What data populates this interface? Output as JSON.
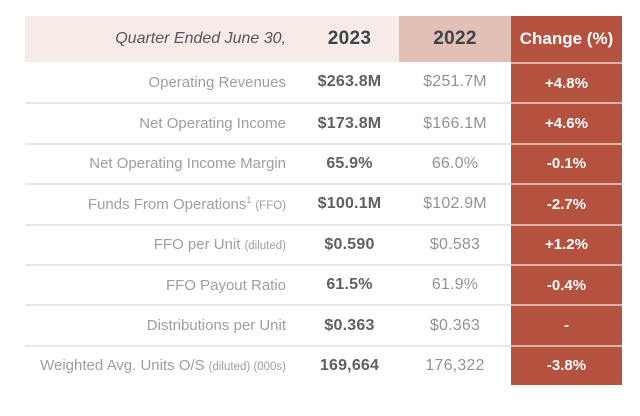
{
  "chart_data": {
    "type": "table",
    "columns": [
      "Quarter Ended June 30,",
      "2023",
      "2022",
      "Change (%)"
    ],
    "rows": [
      {
        "label": "Operating Revenues",
        "sup": "",
        "suffix": "",
        "y2023": "$263.8M",
        "y2022": "$251.7M",
        "change": "+4.8%"
      },
      {
        "label": "Net Operating Income",
        "sup": "",
        "suffix": "",
        "y2023": "$173.8M",
        "y2022": "$166.1M",
        "change": "+4.6%"
      },
      {
        "label": "Net Operating Income Margin",
        "sup": "",
        "suffix": "",
        "y2023": "65.9%",
        "y2022": "66.0%",
        "change": "-0.1%"
      },
      {
        "label": "Funds From Operations",
        "sup": "1",
        "suffix": "(FFO)",
        "y2023": "$100.1M",
        "y2022": "$102.9M",
        "change": "-2.7%"
      },
      {
        "label": "FFO per Unit",
        "sup": "",
        "suffix": "(diluted)",
        "y2023": "$0.590",
        "y2022": "$0.583",
        "change": "+1.2%"
      },
      {
        "label": "FFO Payout Ratio",
        "sup": "",
        "suffix": "",
        "y2023": "61.5%",
        "y2022": "61.9%",
        "change": "-0.4%"
      },
      {
        "label": "Distributions per Unit",
        "sup": "",
        "suffix": "",
        "y2023": "$0.363",
        "y2022": "$0.363",
        "change": "-"
      },
      {
        "label": "Weighted Avg. Units O/S",
        "sup": "",
        "suffix": "(diluted) (000s)",
        "y2023": "169,664",
        "y2022": "176,322",
        "change": "-3.8%"
      }
    ]
  },
  "colors": {
    "header_bg": "#f7ebe7",
    "col_2022_header_bg": "#e2c0b6",
    "change_bg": "#b5513f",
    "change_text": "#ffffff",
    "row_divider": "#e7e7e7",
    "header_text": "#53575d",
    "year_text": "#3e4349",
    "label_text": "#9b9ea2",
    "value_2023_text": "#5d6165",
    "value_2022_text": "#8f9397"
  }
}
